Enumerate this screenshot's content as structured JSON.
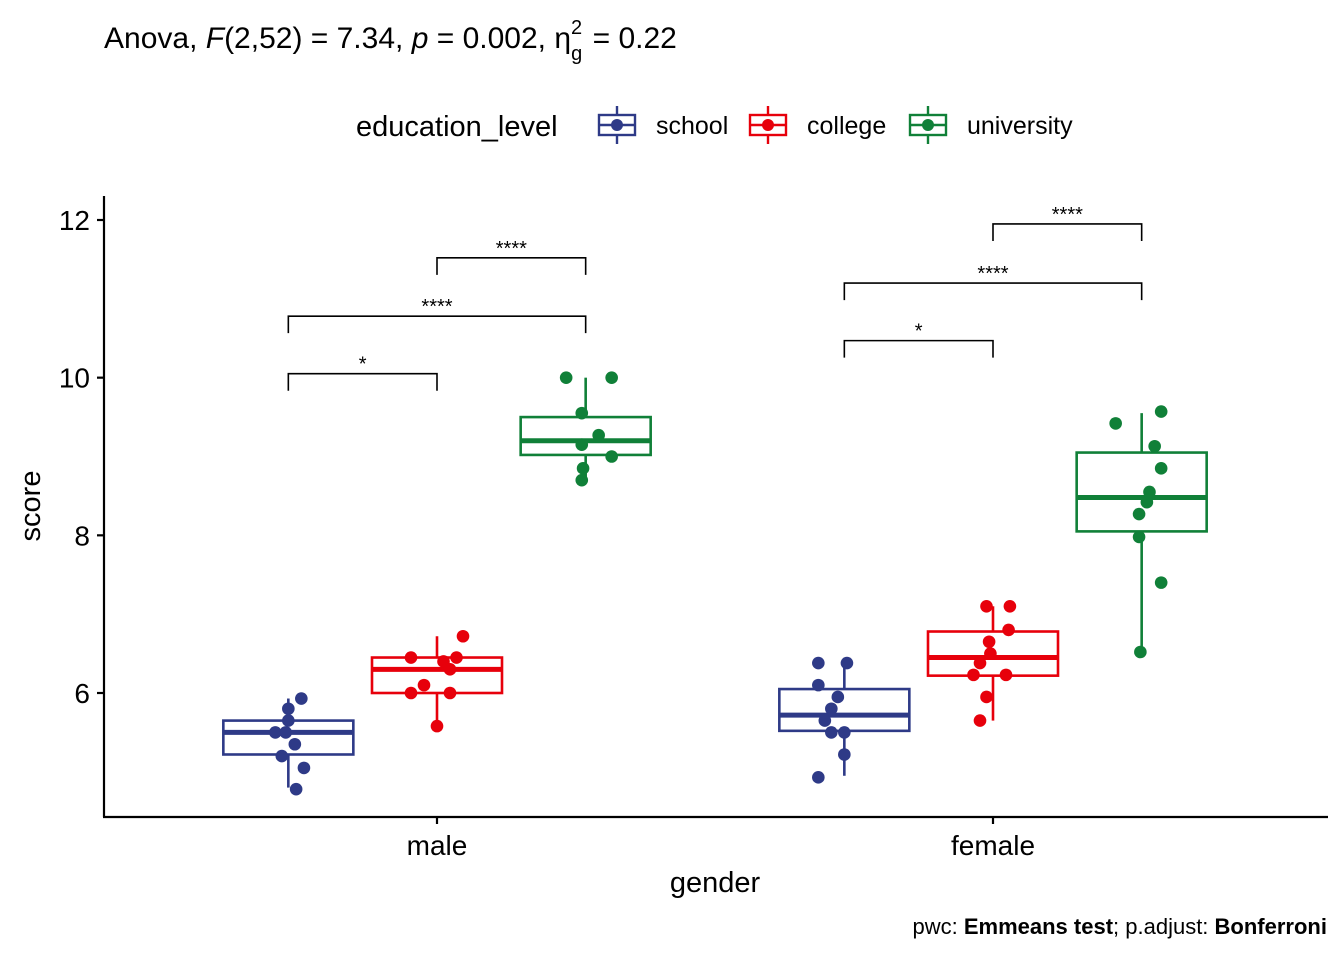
{
  "title": {
    "prefix": "Anova, ",
    "f_symbol": "F",
    "f_args": "(2,52) = 7.34, ",
    "p_symbol": "p",
    "p_value": " = 0.002, ",
    "eta": "η",
    "eta_sup": "2",
    "eta_sub": "g",
    "eta_value": " = 0.22"
  },
  "caption": {
    "pwc_label": "pwc: ",
    "pwc_method": "Emmeans test",
    "sep": "; p.adjust: ",
    "adjust_method": "Bonferroni"
  },
  "chart_data": {
    "type": "boxplot",
    "xlabel": "gender",
    "ylabel": "score",
    "ylim": [
      4.4,
      12.3
    ],
    "y_ticks": [
      6,
      8,
      10,
      12
    ],
    "grid": false,
    "legend": {
      "title": "education_level",
      "position": "top"
    },
    "categories": [
      "male",
      "female"
    ],
    "series": [
      {
        "name": "school",
        "color": "#2E3A87"
      },
      {
        "name": "college",
        "color": "#E7000B"
      },
      {
        "name": "university",
        "color": "#108038"
      }
    ],
    "groups": [
      {
        "gender": "male",
        "level": "school",
        "q1": 5.22,
        "median": 5.5,
        "q3": 5.65,
        "whisker_low": 4.8,
        "whisker_high": 5.93,
        "points": [
          5.93,
          5.8,
          5.65,
          5.5,
          5.5,
          5.35,
          5.2,
          5.05,
          4.78
        ],
        "jitter": [
          0.1,
          0.0,
          0.0,
          -0.1,
          -0.02,
          0.05,
          -0.05,
          0.12,
          0.06
        ]
      },
      {
        "gender": "male",
        "level": "college",
        "q1": 6.0,
        "median": 6.3,
        "q3": 6.45,
        "whisker_low": 5.58,
        "whisker_high": 6.72,
        "points": [
          6.72,
          6.45,
          6.45,
          6.4,
          6.3,
          6.1,
          6.0,
          6.0,
          5.58
        ],
        "jitter": [
          0.2,
          -0.2,
          0.15,
          0.05,
          0.1,
          -0.1,
          -0.2,
          0.1,
          0.0
        ]
      },
      {
        "gender": "male",
        "level": "university",
        "q1": 9.02,
        "median": 9.2,
        "q3": 9.5,
        "whisker_low": 8.7,
        "whisker_high": 10.0,
        "points": [
          10.0,
          10.0,
          9.55,
          9.27,
          9.15,
          9.0,
          8.85,
          8.7
        ],
        "jitter": [
          -0.15,
          0.2,
          -0.03,
          0.1,
          -0.03,
          0.2,
          -0.02,
          -0.03
        ]
      },
      {
        "gender": "female",
        "level": "school",
        "q1": 5.52,
        "median": 5.72,
        "q3": 6.05,
        "whisker_low": 4.95,
        "whisker_high": 6.38,
        "points": [
          6.38,
          6.38,
          6.1,
          5.95,
          5.8,
          5.65,
          5.5,
          5.5,
          5.22,
          4.93
        ],
        "jitter": [
          -0.2,
          0.02,
          -0.2,
          -0.05,
          -0.1,
          -0.15,
          -0.1,
          0.0,
          0.0,
          -0.2
        ]
      },
      {
        "gender": "female",
        "level": "college",
        "q1": 6.22,
        "median": 6.45,
        "q3": 6.78,
        "whisker_low": 5.65,
        "whisker_high": 7.1,
        "points": [
          7.1,
          7.1,
          6.8,
          6.65,
          6.5,
          6.38,
          6.23,
          6.23,
          5.95,
          5.65
        ],
        "jitter": [
          -0.05,
          0.13,
          0.12,
          -0.03,
          -0.02,
          -0.1,
          -0.15,
          0.1,
          -0.05,
          -0.1
        ]
      },
      {
        "gender": "female",
        "level": "university",
        "q1": 8.05,
        "median": 8.48,
        "q3": 9.05,
        "whisker_low": 6.52,
        "whisker_high": 9.55,
        "points": [
          9.57,
          9.42,
          9.13,
          8.85,
          8.55,
          8.42,
          8.27,
          7.98,
          7.4,
          6.52
        ],
        "jitter": [
          0.15,
          -0.2,
          0.1,
          0.15,
          0.06,
          0.04,
          -0.02,
          -0.02,
          0.15,
          -0.01
        ]
      }
    ],
    "comparisons": [
      {
        "gender": "male",
        "from": "school",
        "to": "college",
        "y": 10.05,
        "label": "*"
      },
      {
        "gender": "male",
        "from": "school",
        "to": "university",
        "y": 10.78,
        "label": "****"
      },
      {
        "gender": "male",
        "from": "college",
        "to": "university",
        "y": 11.52,
        "label": "****"
      },
      {
        "gender": "female",
        "from": "school",
        "to": "college",
        "y": 10.47,
        "label": "*"
      },
      {
        "gender": "female",
        "from": "school",
        "to": "university",
        "y": 11.2,
        "label": "****"
      },
      {
        "gender": "female",
        "from": "college",
        "to": "university",
        "y": 11.95,
        "label": "****"
      }
    ]
  }
}
